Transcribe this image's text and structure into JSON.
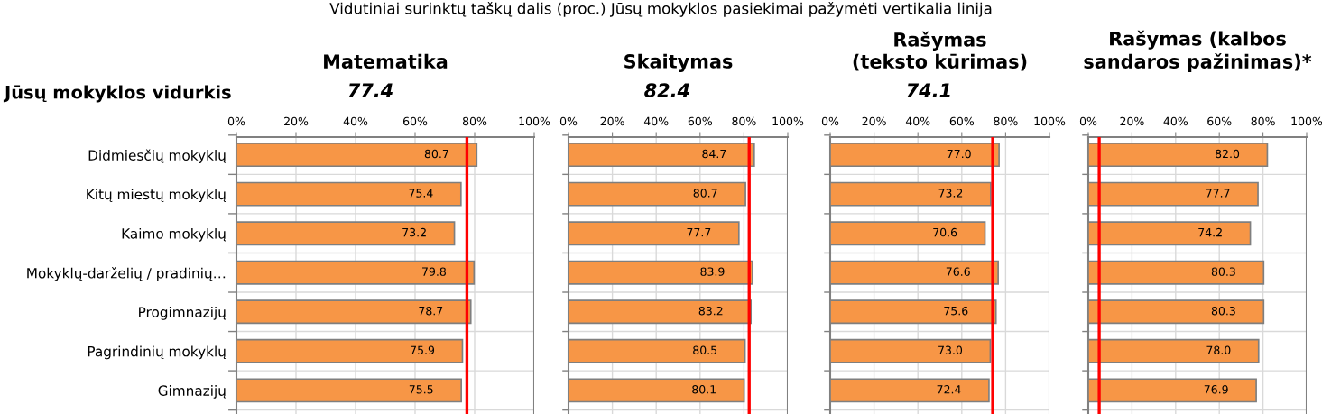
{
  "chart_data": [
    {
      "type": "bar",
      "orientation": "horizontal",
      "title": "Matematika",
      "subtitle": "77.4",
      "annotations": [
        "Vidutiniai surinktų taškų dalis (proc.) Jūsų mokyklos pasiekimai pažymėti vertikalia linija",
        "Jūsų mokyklos vidurkis"
      ],
      "categories": [
        "Didmiesčių mokyklų",
        "Kitų miestų mokyklų",
        "Kaimo mokyklų",
        "Mokyklų-darželių / pradinių…",
        "Progimnazijų",
        "Pagrindinių mokyklų",
        "Gimnazijų"
      ],
      "values": [
        80.7,
        75.4,
        73.2,
        79.8,
        78.7,
        75.9,
        75.5
      ],
      "color": "#f79646",
      "value_labels": [
        "80.7",
        "75.4",
        "73.2",
        "79.8",
        "78.7",
        "75.9",
        "75.5"
      ],
      "xlim": [
        0,
        100
      ],
      "xticks": [
        {
          "value": 0,
          "label": "0%"
        },
        {
          "value": 20,
          "label": "20%"
        },
        {
          "value": 40,
          "label": "40%"
        },
        {
          "value": 60,
          "label": "60%"
        },
        {
          "value": 80,
          "label": "80%"
        },
        {
          "value": 100,
          "label": "100%"
        }
      ],
      "ref_lines": [
        {
          "axis": "x",
          "value": 77.4,
          "color": "#ff0000"
        }
      ],
      "grid": true,
      "legend": false
    },
    {
      "type": "bar",
      "orientation": "horizontal",
      "title": "Skaitymas",
      "subtitle": "82.4",
      "categories": [
        null,
        null,
        null,
        null,
        null,
        null,
        null
      ],
      "values": [
        84.7,
        80.7,
        77.7,
        83.9,
        83.2,
        80.5,
        80.1
      ],
      "color": "#f79646",
      "value_labels": [
        "84.7",
        "80.7",
        "77.7",
        "83.9",
        "83.2",
        "80.5",
        "80.1"
      ],
      "xlim": [
        0,
        100
      ],
      "xticks": [
        {
          "value": 0,
          "label": "0%"
        },
        {
          "value": 20,
          "label": "20%"
        },
        {
          "value": 40,
          "label": "40%"
        },
        {
          "value": 60,
          "label": "60%"
        },
        {
          "value": 80,
          "label": "80%"
        },
        {
          "value": 100,
          "label": "100%"
        }
      ],
      "ref_lines": [
        {
          "axis": "x",
          "value": 82.4,
          "color": "#ff0000"
        }
      ],
      "grid": true,
      "legend": false,
      "tick_labels": "x"
    },
    {
      "type": "bar",
      "orientation": "horizontal",
      "title": "Rašymas\n(teksto kūrimas)",
      "subtitle": "74.1",
      "categories": [
        null,
        null,
        null,
        null,
        null,
        null,
        null
      ],
      "values": [
        77.0,
        73.2,
        70.6,
        76.6,
        75.6,
        73.0,
        72.4
      ],
      "color": "#f79646",
      "value_labels": [
        "77.0",
        "73.2",
        "70.6",
        "76.6",
        "75.6",
        "73.0",
        "72.4"
      ],
      "xlim": [
        0,
        100
      ],
      "xticks": [
        {
          "value": 0,
          "label": "0%"
        },
        {
          "value": 20,
          "label": "20%"
        },
        {
          "value": 40,
          "label": "40%"
        },
        {
          "value": 60,
          "label": "60%"
        },
        {
          "value": 80,
          "label": "80%"
        },
        {
          "value": 100,
          "label": "100%"
        }
      ],
      "ref_lines": [
        {
          "axis": "x",
          "value": 74.1,
          "color": "#ff0000"
        }
      ],
      "grid": true,
      "legend": false,
      "tick_labels": "x"
    },
    {
      "type": "bar",
      "orientation": "horizontal",
      "title": "Rašymas (kalbos\nsandaros pažinimas)*",
      "categories": [
        null,
        null,
        null,
        null,
        null,
        null,
        null
      ],
      "values": [
        82.0,
        77.7,
        74.2,
        80.3,
        80.3,
        78.0,
        76.9
      ],
      "color": "#f79646",
      "value_labels": [
        "82.0",
        "77.7",
        "74.2",
        "80.3",
        "80.3",
        "78.0",
        "76.9"
      ],
      "xlim": [
        0,
        100
      ],
      "xticks": [
        {
          "value": 0,
          "label": "0%"
        },
        {
          "value": 20,
          "label": "20%"
        },
        {
          "value": 40,
          "label": "40%"
        },
        {
          "value": 60,
          "label": "60%"
        },
        {
          "value": 80,
          "label": "80%"
        },
        {
          "value": 100,
          "label": "100%"
        }
      ],
      "ref_lines": [
        {
          "axis": "x",
          "value": 5,
          "color": "#ff0000"
        }
      ],
      "grid": true,
      "legend": false,
      "tick_labels": "x"
    }
  ]
}
